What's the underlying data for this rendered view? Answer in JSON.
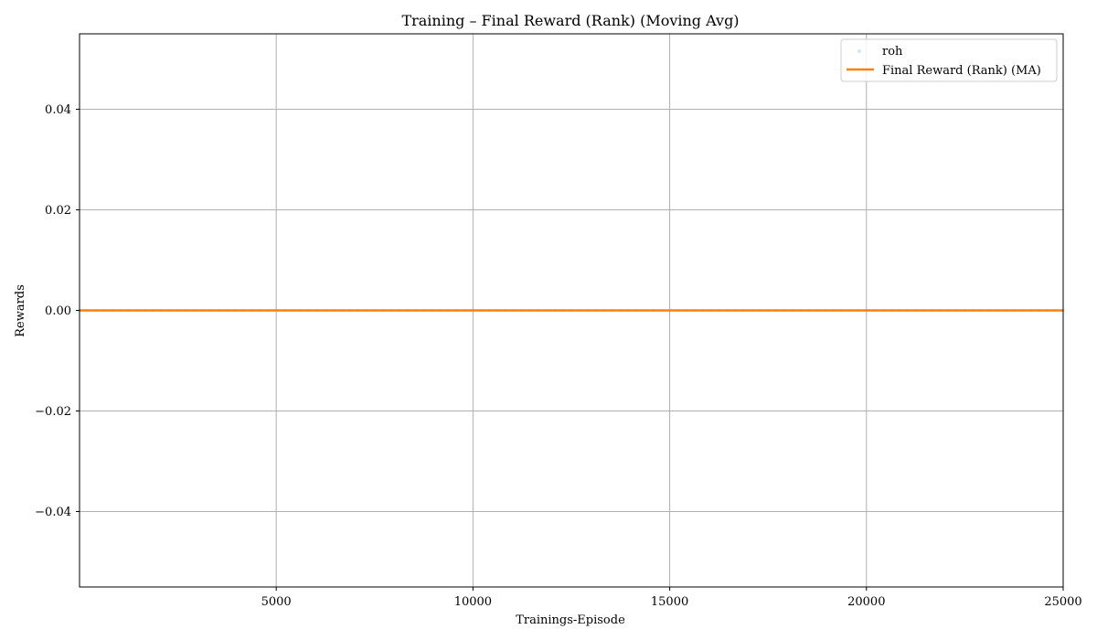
{
  "chart_data": {
    "type": "line",
    "title": "Training – Final Reward (Rank) (Moving Avg)",
    "xlabel": "Trainings-Episode",
    "ylabel": "Rewards",
    "xlim": [
      1,
      25000
    ],
    "ylim": [
      -0.055,
      0.055
    ],
    "x_ticks": [
      5000,
      10000,
      15000,
      20000,
      25000
    ],
    "x_tick_labels": [
      "5000",
      "10000",
      "15000",
      "20000",
      "25000"
    ],
    "y_ticks": [
      -0.04,
      -0.02,
      0.0,
      0.02,
      0.04
    ],
    "y_tick_labels": [
      "−0.04",
      "−0.02",
      "0.00",
      "0.02",
      "0.04"
    ],
    "grid": true,
    "legend_position": "top-right",
    "series": [
      {
        "name": "roh",
        "kind": "scatter",
        "color": "#a6c8e8",
        "x": [
          1,
          25000
        ],
        "y": [
          0,
          0
        ]
      },
      {
        "name": "Final Reward (Rank) (MA)",
        "kind": "line",
        "color": "#ff7f0e",
        "x": [
          1,
          25000
        ],
        "y": [
          0,
          0
        ]
      }
    ]
  }
}
